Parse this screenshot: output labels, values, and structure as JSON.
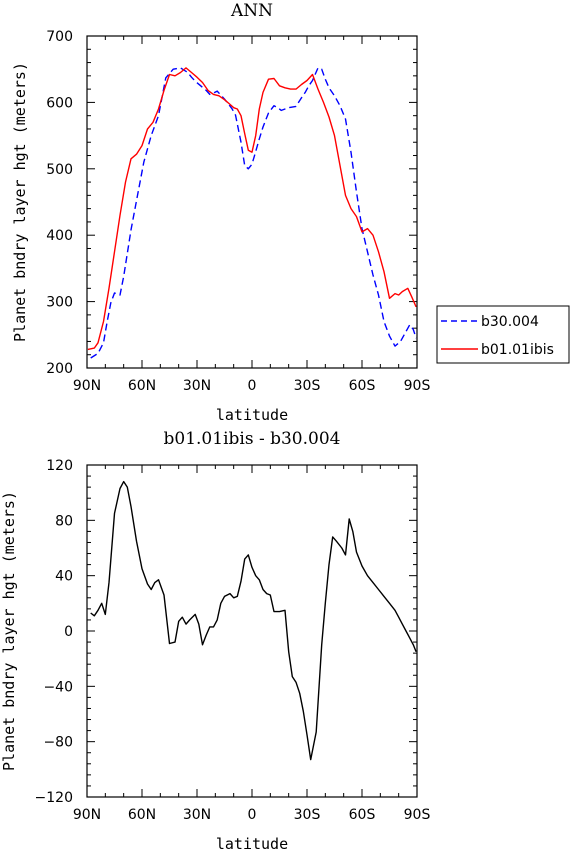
{
  "colors": {
    "series_dashed": "#0000ff",
    "series_solid": "#ff0000",
    "diff": "#000000"
  },
  "chart_data": [
    {
      "type": "line",
      "title": "ANN",
      "xlabel": "latitude",
      "ylabel": "Planet bndry layer hgt (meters)",
      "xlim": [
        -90,
        90
      ],
      "ylim": [
        200,
        700
      ],
      "x_ticks": [
        -90,
        -60,
        -30,
        0,
        30,
        60,
        90
      ],
      "x_tick_labels": [
        "90N",
        "60N",
        "30N",
        "0",
        "30S",
        "60S",
        "90S"
      ],
      "y_ticks": [
        200,
        300,
        400,
        500,
        600,
        700
      ],
      "y_tick_labels": [
        "200",
        "300",
        "400",
        "500",
        "600",
        "700"
      ],
      "legend": {
        "placement": "right",
        "entries": [
          "b30.004",
          "b01.01ibis"
        ]
      },
      "series": [
        {
          "name": "b30.004",
          "style": "dashed",
          "color": "#0000ff",
          "x": [
            -88,
            -84,
            -81,
            -79,
            -77,
            -75,
            -72,
            -70,
            -66,
            -63,
            -59,
            -55,
            -51,
            -47,
            -43,
            -39,
            -35,
            -33,
            -31,
            -28,
            -25,
            -23,
            -21,
            -19,
            -17,
            -15,
            -13,
            -11,
            -9,
            -6,
            -4,
            -2,
            0,
            2,
            4,
            6,
            9,
            12,
            14,
            16,
            18,
            20,
            24,
            27,
            29,
            31,
            33,
            36,
            38,
            40,
            42,
            45,
            48,
            51,
            54,
            57,
            60,
            63,
            66,
            69,
            72,
            75,
            78,
            81,
            84,
            86,
            88,
            89.5
          ],
          "y": [
            215,
            222,
            238,
            270,
            298,
            313,
            310,
            338,
            408,
            452,
            510,
            550,
            580,
            637,
            650,
            652,
            645,
            638,
            632,
            625,
            618,
            612,
            614,
            617,
            611,
            605,
            598,
            591,
            581,
            540,
            505,
            500,
            507,
            526,
            545,
            563,
            584,
            595,
            592,
            588,
            590,
            592,
            594,
            607,
            615,
            625,
            633,
            652,
            650,
            635,
            622,
            610,
            595,
            575,
            525,
            465,
            410,
            375,
            340,
            310,
            270,
            248,
            233,
            240,
            255,
            265,
            258,
            245
          ]
        },
        {
          "name": "b01.01ibis",
          "style": "solid",
          "color": "#ff0000",
          "x": [
            -89.5,
            -86,
            -84,
            -81,
            -78,
            -75,
            -72,
            -69,
            -66,
            -63,
            -60,
            -57,
            -54,
            -51,
            -48,
            -45,
            -42,
            -39,
            -36,
            -33,
            -30,
            -27,
            -24,
            -21,
            -18,
            -15,
            -12,
            -10,
            -8,
            -6,
            -4,
            -2,
            0,
            2,
            4,
            6,
            9,
            12,
            15,
            18,
            21,
            24,
            27,
            30,
            33,
            36,
            39,
            42,
            45,
            48,
            51,
            54,
            57,
            60,
            63,
            66,
            69,
            72,
            75,
            78,
            80,
            82,
            85,
            87,
            89.5
          ],
          "y": [
            228,
            230,
            238,
            270,
            320,
            375,
            430,
            480,
            515,
            522,
            535,
            560,
            570,
            590,
            618,
            642,
            640,
            645,
            652,
            645,
            638,
            630,
            618,
            612,
            610,
            604,
            597,
            592,
            590,
            580,
            553,
            528,
            525,
            550,
            590,
            615,
            635,
            636,
            625,
            622,
            620,
            620,
            627,
            633,
            642,
            620,
            600,
            578,
            550,
            505,
            460,
            440,
            428,
            405,
            410,
            400,
            375,
            345,
            305,
            312,
            310,
            315,
            320,
            308,
            292
          ]
        }
      ]
    },
    {
      "type": "line",
      "title": "b01.01ibis - b30.004",
      "xlabel": "latitude",
      "ylabel": "Planet bndry layer hgt (meters)",
      "xlim": [
        -90,
        90
      ],
      "ylim": [
        -120,
        120
      ],
      "x_ticks": [
        -90,
        -60,
        -30,
        0,
        30,
        60,
        90
      ],
      "x_tick_labels": [
        "90N",
        "60N",
        "30N",
        "0",
        "30S",
        "60S",
        "90S"
      ],
      "y_ticks": [
        -120,
        -80,
        -40,
        0,
        40,
        80,
        120
      ],
      "y_tick_labels": [
        "−120",
        "−80",
        "−40",
        "0",
        "40",
        "80",
        "120"
      ],
      "series": [
        {
          "style": "solid",
          "color": "#000000",
          "x": [
            -88,
            -86,
            -84,
            -82,
            -80,
            -78,
            -75,
            -72,
            -70,
            -68,
            -66,
            -63,
            -60,
            -57,
            -55,
            -53,
            -51,
            -48,
            -45,
            -42,
            -40,
            -38,
            -36,
            -34,
            -31,
            -29,
            -27,
            -25,
            -23,
            -21,
            -19,
            -17,
            -15,
            -12,
            -10,
            -8,
            -6,
            -4,
            -2,
            0,
            2,
            4,
            6,
            8,
            10,
            12,
            15,
            18,
            20,
            22,
            24,
            26,
            28,
            30,
            32,
            35,
            38,
            40,
            42,
            44,
            46,
            49,
            51,
            53,
            55,
            57,
            60,
            63,
            66,
            69,
            72,
            75,
            78,
            80,
            82,
            84,
            86,
            88,
            89.5
          ],
          "y": [
            13,
            11,
            15,
            20,
            12,
            35,
            85,
            103,
            108,
            104,
            90,
            65,
            45,
            34,
            30,
            35,
            37,
            26,
            -9,
            -8,
            7,
            10,
            5,
            8,
            12,
            5,
            -10,
            -3,
            3,
            3,
            8,
            20,
            25,
            27,
            24,
            25,
            36,
            52,
            55,
            46,
            40,
            37,
            30,
            27,
            26,
            14,
            14,
            15,
            -15,
            -33,
            -37,
            -45,
            -58,
            -75,
            -93,
            -73,
            -10,
            20,
            48,
            68,
            65,
            60,
            55,
            81,
            72,
            57,
            47,
            40,
            35,
            30,
            25,
            20,
            15,
            10,
            5,
            0,
            -5,
            -10,
            -15
          ]
        }
      ]
    }
  ]
}
